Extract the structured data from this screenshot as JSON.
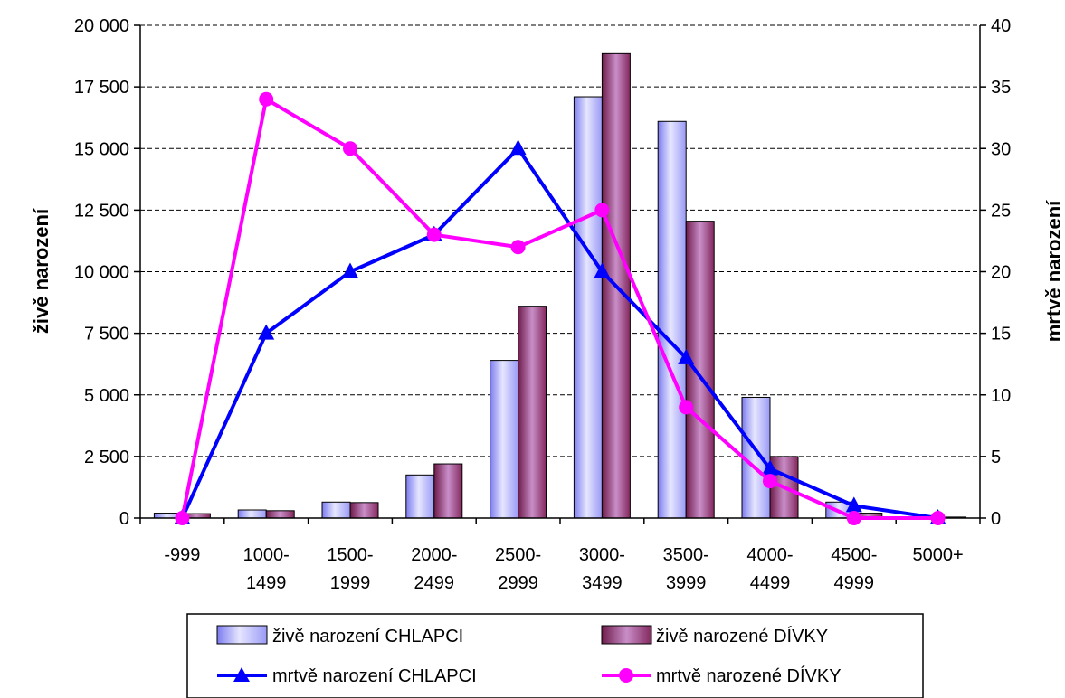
{
  "chart_data": {
    "type": "bar",
    "categories": [
      "-999",
      "1000-1499",
      "1500-1999",
      "2000-2499",
      "2500-2999",
      "3000-3499",
      "3500-3999",
      "4000-4499",
      "4500-4999",
      "5000+"
    ],
    "category_lines": [
      [
        "-999"
      ],
      [
        "1000-",
        "1499"
      ],
      [
        "1500-",
        "1999"
      ],
      [
        "2000-",
        "2499"
      ],
      [
        "2500-",
        "2999"
      ],
      [
        "3000-",
        "3499"
      ],
      [
        "3500-",
        "3999"
      ],
      [
        "4000-",
        "4499"
      ],
      [
        "4500-",
        "4999"
      ],
      [
        "5000+"
      ]
    ],
    "ylabel": "živě narození",
    "ylabel_right": "mrtvě narození",
    "ylim": [
      0,
      20000
    ],
    "ylim_right": [
      0,
      40
    ],
    "y_ticks": [
      "0",
      "2 500",
      "5 000",
      "7 500",
      "10 000",
      "12 500",
      "15 000",
      "17 500",
      "20 000"
    ],
    "y_ticks_right": [
      "0",
      "5",
      "10",
      "15",
      "20",
      "25",
      "30",
      "35",
      "40"
    ],
    "grid": true,
    "legend_position": "bottom",
    "series": [
      {
        "name": "živě narození CHLAPCI",
        "type": "bar",
        "axis": "left",
        "color": "#9999ff",
        "values": [
          200,
          330,
          650,
          1750,
          6400,
          17100,
          16100,
          4900,
          650,
          10
        ]
      },
      {
        "name": "živě narozené DÍVKY",
        "type": "bar",
        "axis": "left",
        "color": "#993366",
        "values": [
          180,
          300,
          630,
          2200,
          8600,
          18850,
          12050,
          2500,
          200,
          40
        ]
      },
      {
        "name": "mrtvě narození CHLAPCI",
        "type": "line",
        "axis": "right",
        "color": "#0000ff",
        "marker": "triangle",
        "values": [
          0,
          15,
          20,
          23,
          30,
          20,
          13,
          4,
          1,
          0
        ]
      },
      {
        "name": "mrtvě narozené DÍVKY",
        "type": "line",
        "axis": "right",
        "color": "#ff00ff",
        "marker": "circle",
        "values": [
          0,
          34,
          30,
          23,
          22,
          25,
          9,
          3,
          0,
          0
        ]
      }
    ]
  }
}
